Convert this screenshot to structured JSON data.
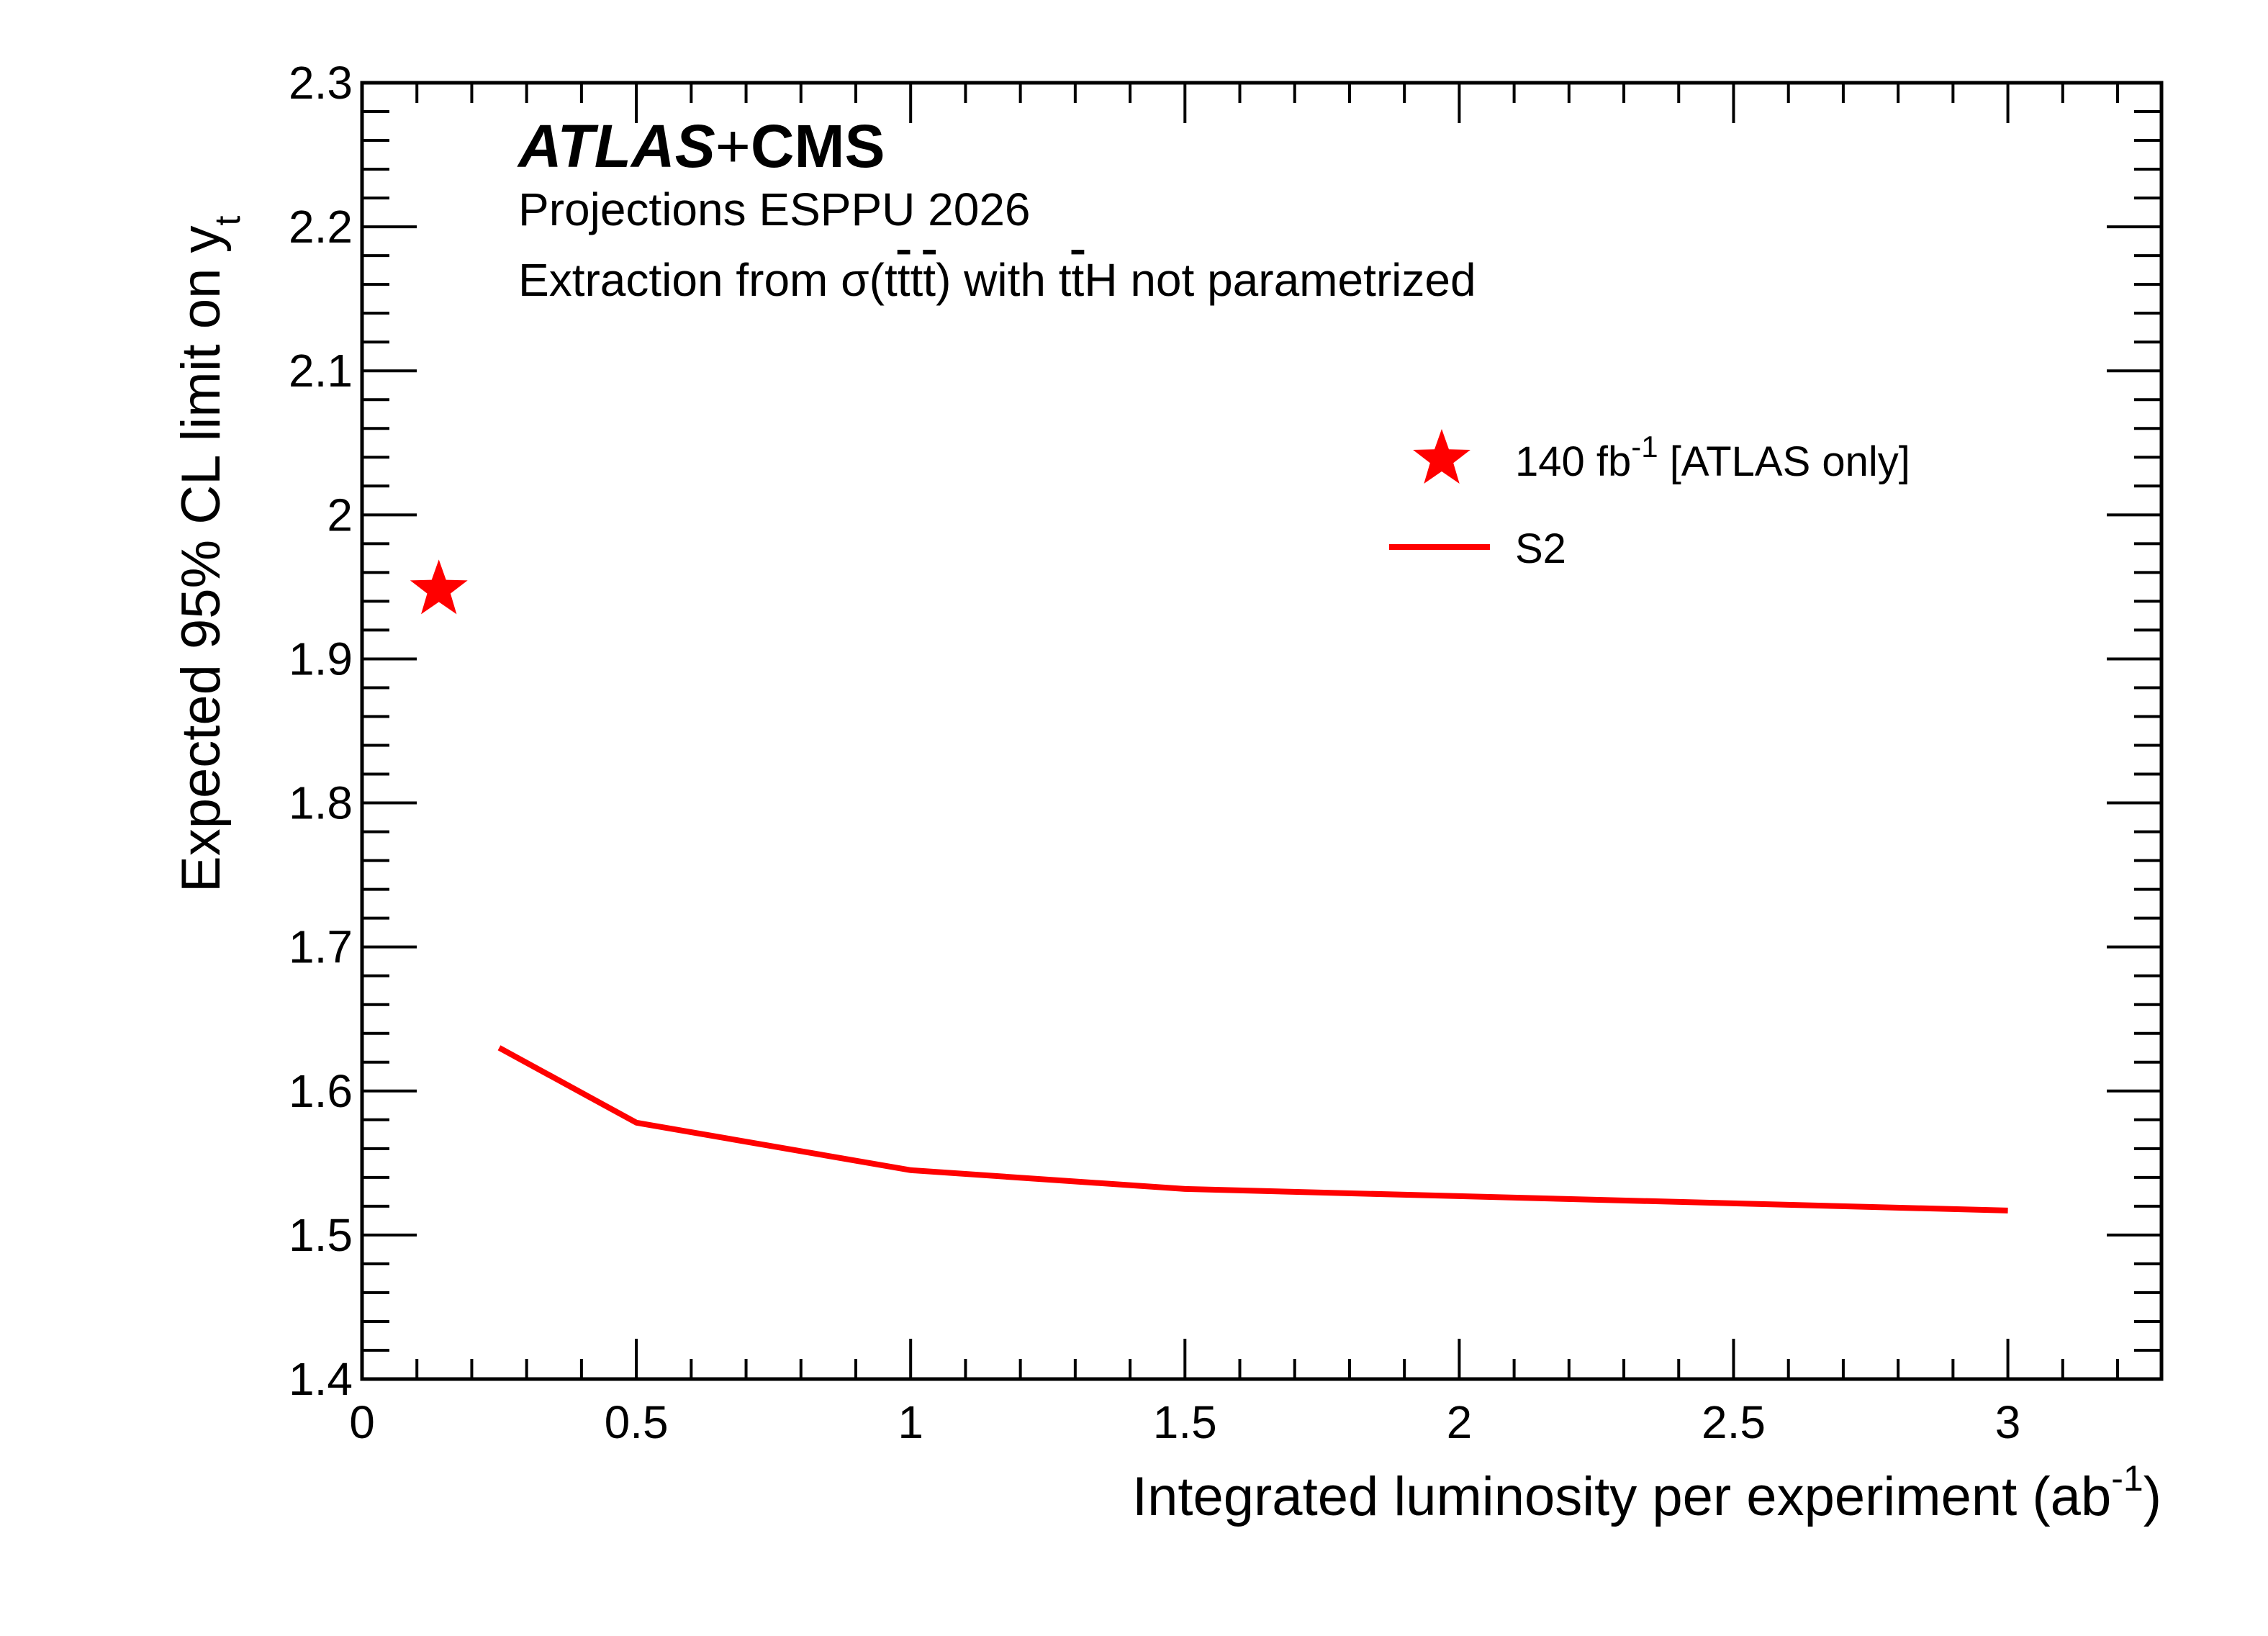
{
  "chart_data": {
    "type": "line",
    "experiment": {
      "atlas": "ATLAS",
      "plus": "+",
      "cms": "CMS"
    },
    "subtitle": "Projections ESPPU 2026",
    "note": {
      "before": "Extraction from σ(t",
      "tbar1": "t",
      "t2": "t",
      "tbar2": "t",
      "mid": ") with t",
      "tbar3": "t",
      "after": "H not parametrized"
    },
    "xlabel": {
      "main": "Integrated luminosity per experiment (ab",
      "sup": "-1",
      "close": ")"
    },
    "ylabel": {
      "main": "Expected 95% CL limit on y",
      "sub": "t"
    },
    "xlim": [
      0,
      3.28
    ],
    "ylim": [
      1.4,
      2.3
    ],
    "x_ticks": [
      0,
      0.5,
      1,
      1.5,
      2,
      2.5,
      3
    ],
    "x_tick_labels": [
      "0",
      "0.5",
      "1",
      "1.5",
      "2",
      "2.5",
      "3"
    ],
    "y_ticks": [
      1.4,
      1.5,
      1.6,
      1.7,
      1.8,
      1.9,
      2.0,
      2.1,
      2.2,
      2.3
    ],
    "y_tick_labels": [
      "1.4",
      "1.5",
      "1.6",
      "1.7",
      "1.8",
      "1.9",
      "2",
      "2.1",
      "2.2",
      "2.3"
    ],
    "series": [
      {
        "kind": "line",
        "color": "#ff0000",
        "x": [
          0.25,
          0.5,
          1.0,
          1.5,
          2.0,
          2.5,
          3.0
        ],
        "y": [
          1.63,
          1.578,
          1.545,
          1.532,
          1.527,
          1.522,
          1.517
        ]
      },
      {
        "kind": "marker",
        "marker": "star",
        "color": "#ff0000",
        "x": [
          0.14
        ],
        "y": [
          1.948
        ]
      }
    ],
    "legend": {
      "placement": "top-right",
      "entries": [
        {
          "marker": "star",
          "text": "140 fb",
          "sup": "-1",
          "suffix": " [ATLAS only]"
        },
        {
          "marker": "line",
          "text": "S2"
        }
      ]
    },
    "grid": false
  }
}
